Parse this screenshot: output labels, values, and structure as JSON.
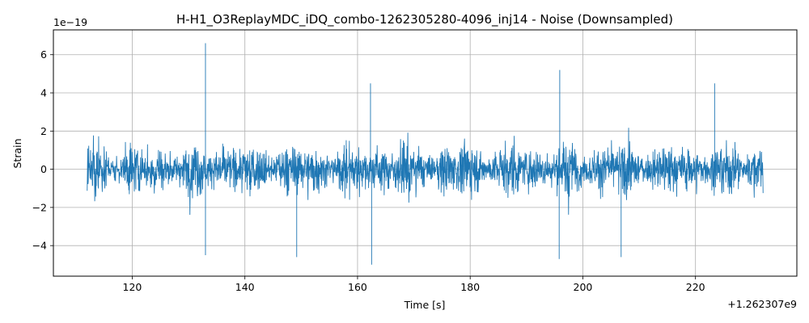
{
  "chart_data": {
    "type": "line",
    "title": "H-H1_O3ReplayMDC_iDQ_combo-1262305280-4096_inj14 - Noise (Downsampled)",
    "xlabel": "Time [s]",
    "ylabel": "Strain",
    "x_offset_label": "+1.262307e9",
    "y_scale_label": "1e−19",
    "xlim": [
      106,
      238
    ],
    "ylim": [
      -5.6,
      7.3
    ],
    "x_ticks": [
      120,
      140,
      160,
      180,
      200,
      220
    ],
    "x_tick_labels": [
      "120",
      "140",
      "160",
      "180",
      "200",
      "220"
    ],
    "y_ticks": [
      -4,
      -2,
      0,
      2,
      4,
      6
    ],
    "y_tick_labels": [
      "−4",
      "−2",
      "0",
      "2",
      "4",
      "6"
    ],
    "grid": true,
    "series": [
      {
        "color": "#1f77b4",
        "x_range": [
          112,
          232
        ],
        "typical_amplitude": 1.2,
        "peaks": [
          {
            "x": 133.0,
            "y": 6.6
          },
          {
            "x": 133.0,
            "y": -4.5
          },
          {
            "x": 149.2,
            "y": -4.6
          },
          {
            "x": 162.5,
            "y": -5.0
          },
          {
            "x": 162.3,
            "y": 4.5
          },
          {
            "x": 195.9,
            "y": 5.2
          },
          {
            "x": 195.8,
            "y": -4.7
          },
          {
            "x": 223.4,
            "y": 4.5
          },
          {
            "x": 206.8,
            "y": -4.6
          }
        ]
      }
    ]
  }
}
